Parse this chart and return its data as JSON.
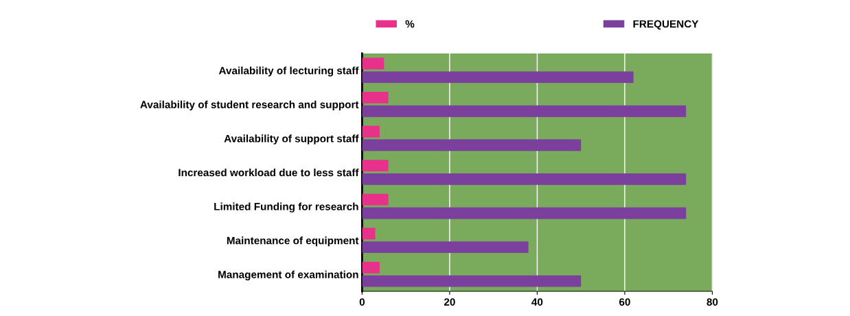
{
  "chart_data": {
    "type": "bar",
    "orientation": "horizontal",
    "categories": [
      "Availability of lecturing staff",
      "Availability of student research and support",
      "Availability of support staff",
      "Increased workload due to less staff",
      "Limited Funding for research",
      "Maintenance of equipment",
      "Management of examination"
    ],
    "series": [
      {
        "name": "%",
        "color": "#e8318a",
        "values": [
          5,
          6,
          4,
          6,
          6,
          3,
          4
        ]
      },
      {
        "name": "FREQUENCY",
        "color": "#7b3f9e",
        "values": [
          62,
          74,
          50,
          74,
          74,
          38,
          50
        ]
      }
    ],
    "xlim": [
      0,
      80
    ],
    "xticks": [
      0,
      20,
      40,
      60,
      80
    ],
    "grid": "x",
    "legend": "top"
  }
}
